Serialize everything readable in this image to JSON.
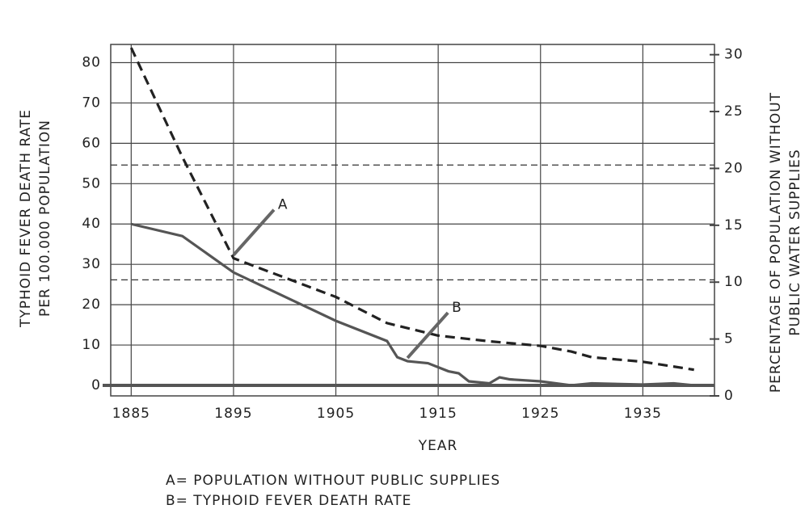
{
  "chart_data": {
    "type": "line",
    "xlabel": "YEAR",
    "ylabel": [
      "TYPHOID FEVER DEATH RATE",
      "PER 100.000 POPULATION"
    ],
    "y2label": [
      "PERCENTAGE OF POPULATION WITHOUT",
      "PUBLIC WATER SUPPLIES"
    ],
    "xlim": [
      1883,
      1942
    ],
    "xticks": [
      1885,
      1895,
      1905,
      1915,
      1925,
      1935
    ],
    "ylim": [
      -2.6,
      84.5
    ],
    "yticks": [
      0,
      10,
      20,
      30,
      40,
      50,
      60,
      70,
      80
    ],
    "y2lim": [
      0,
      30.9
    ],
    "y2ticks": [
      0,
      5,
      10,
      15,
      20,
      25,
      30
    ],
    "grid": true,
    "reference_lines": [
      20.3,
      10.2
    ],
    "series": [
      {
        "name": "A",
        "axis": "y2",
        "color": "#222222",
        "dash": true,
        "x": [
          1885,
          1890,
          1895,
          1900,
          1905,
          1910,
          1915,
          1920,
          1925,
          1928,
          1930,
          1935,
          1940
        ],
        "values": [
          30.6,
          21,
          12.1,
          10.4,
          8.7,
          6.4,
          5.3,
          4.8,
          4.4,
          3.9,
          3.4,
          3.0,
          2.3
        ]
      },
      {
        "name": "B",
        "axis": "y",
        "color": "#555555",
        "dash": false,
        "x": [
          1885,
          1890,
          1895,
          1900,
          1905,
          1910,
          1911,
          1912,
          1914,
          1916,
          1917,
          1918,
          1920,
          1921,
          1922,
          1925,
          1928,
          1930,
          1935,
          1938,
          1940
        ],
        "values": [
          40,
          37,
          28,
          22,
          16,
          11,
          7,
          6,
          5.5,
          3.5,
          3,
          1,
          0.5,
          2,
          1.5,
          1,
          0,
          0.5,
          0.2,
          0.5,
          0
        ]
      }
    ],
    "notes": [
      "A= POPULATION WITHOUT PUBLIC SUPPLIES",
      "B= TYPHOID FEVER DEATH RATE"
    ]
  }
}
